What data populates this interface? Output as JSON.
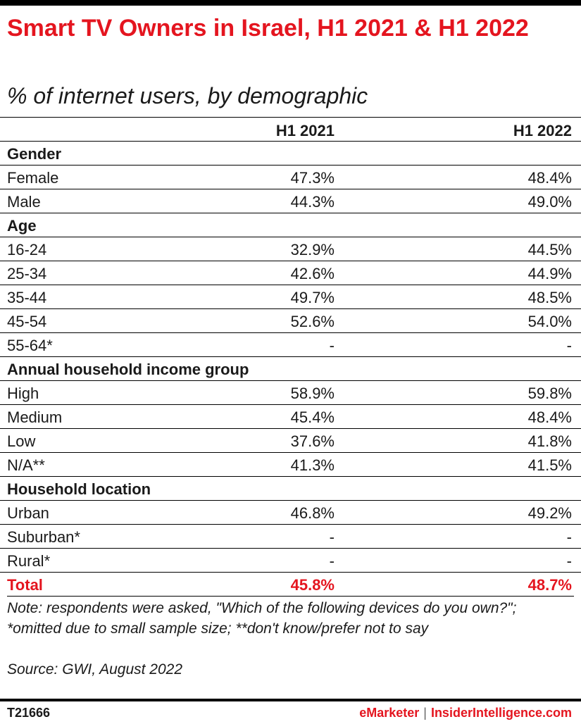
{
  "title": "Smart TV Owners in Israel, H1 2021 & H1 2022",
  "subtitle": "% of internet users, by demographic",
  "columns": [
    "H1 2021",
    "H1 2022"
  ],
  "rows": [
    {
      "label": "Gender",
      "group": true
    },
    {
      "label": "Female",
      "v1": "47.3%",
      "v2": "48.4%"
    },
    {
      "label": "Male",
      "v1": "44.3%",
      "v2": "49.0%"
    },
    {
      "label": "Age",
      "group": true
    },
    {
      "label": "16-24",
      "v1": "32.9%",
      "v2": "44.5%"
    },
    {
      "label": "25-34",
      "v1": "42.6%",
      "v2": "44.9%"
    },
    {
      "label": "35-44",
      "v1": "49.7%",
      "v2": "48.5%"
    },
    {
      "label": "45-54",
      "v1": "52.6%",
      "v2": "54.0%"
    },
    {
      "label": "55-64*",
      "v1": "-",
      "v2": "-"
    },
    {
      "label": "Annual household income group",
      "group": true
    },
    {
      "label": "High",
      "v1": "58.9%",
      "v2": "59.8%"
    },
    {
      "label": "Medium",
      "v1": "45.4%",
      "v2": "48.4%"
    },
    {
      "label": "Low",
      "v1": "37.6%",
      "v2": "41.8%"
    },
    {
      "label": "N/A**",
      "v1": "41.3%",
      "v2": "41.5%"
    },
    {
      "label": "Household location",
      "group": true
    },
    {
      "label": "Urban",
      "v1": "46.8%",
      "v2": "49.2%"
    },
    {
      "label": "Suburban*",
      "v1": "-",
      "v2": "-"
    },
    {
      "label": "Rural*",
      "v1": "-",
      "v2": "-"
    },
    {
      "label": "Total",
      "v1": "45.8%",
      "v2": "48.7%",
      "total": true
    }
  ],
  "note": "Note: respondents were asked, \"Which of the following devices do you own?\"; *omitted due to small sample size; **don't know/prefer not to say",
  "source": "Source: GWI, August 2022",
  "footer": {
    "id": "T21666",
    "brand_left": "eMarketer",
    "separator": "|",
    "brand_right": "InsiderIntelligence.com"
  },
  "colors": {
    "accent": "#e4151f",
    "text": "#1a1a1a"
  },
  "chart_data": {
    "type": "table",
    "title": "Smart TV Owners in Israel, H1 2021 & H1 2022",
    "subtitle": "% of internet users, by demographic",
    "columns": [
      "H1 2021",
      "H1 2022"
    ],
    "groups": [
      {
        "name": "Gender",
        "rows": [
          {
            "label": "Female",
            "values": [
              47.3,
              48.4
            ]
          },
          {
            "label": "Male",
            "values": [
              44.3,
              49.0
            ]
          }
        ]
      },
      {
        "name": "Age",
        "rows": [
          {
            "label": "16-24",
            "values": [
              32.9,
              44.5
            ]
          },
          {
            "label": "25-34",
            "values": [
              42.6,
              44.9
            ]
          },
          {
            "label": "35-44",
            "values": [
              49.7,
              48.5
            ]
          },
          {
            "label": "45-54",
            "values": [
              52.6,
              54.0
            ]
          },
          {
            "label": "55-64*",
            "values": [
              null,
              null
            ]
          }
        ]
      },
      {
        "name": "Annual household income group",
        "rows": [
          {
            "label": "High",
            "values": [
              58.9,
              59.8
            ]
          },
          {
            "label": "Medium",
            "values": [
              45.4,
              48.4
            ]
          },
          {
            "label": "Low",
            "values": [
              37.6,
              41.8
            ]
          },
          {
            "label": "N/A**",
            "values": [
              41.3,
              41.5
            ]
          }
        ]
      },
      {
        "name": "Household location",
        "rows": [
          {
            "label": "Urban",
            "values": [
              46.8,
              49.2
            ]
          },
          {
            "label": "Suburban*",
            "values": [
              null,
              null
            ]
          },
          {
            "label": "Rural*",
            "values": [
              null,
              null
            ]
          }
        ]
      }
    ],
    "total": {
      "label": "Total",
      "values": [
        45.8,
        48.7
      ]
    }
  }
}
